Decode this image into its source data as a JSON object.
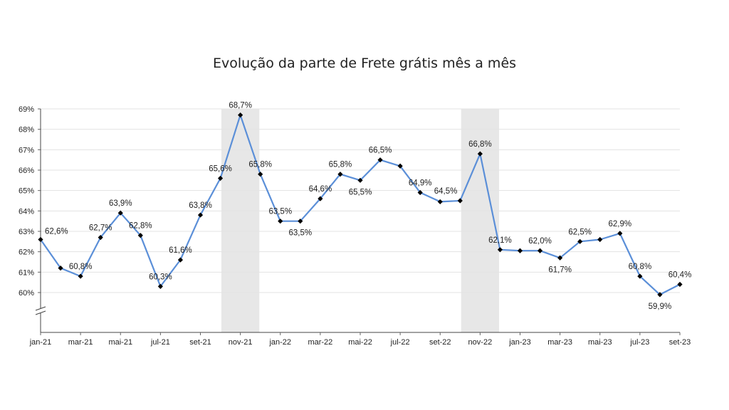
{
  "chart_data": {
    "type": "line",
    "title": "Evolução da parte de Frete grátis mês a mês",
    "y_axis": {
      "min": 60,
      "max": 69,
      "ticks": [
        {
          "value": 60,
          "label": "60%"
        },
        {
          "value": 61,
          "label": "61%"
        },
        {
          "value": 62,
          "label": "62%"
        },
        {
          "value": 63,
          "label": "63%"
        },
        {
          "value": 64,
          "label": "64%"
        },
        {
          "value": 65,
          "label": "65%"
        },
        {
          "value": 66,
          "label": "66%"
        },
        {
          "value": 67,
          "label": "67%"
        },
        {
          "value": 68,
          "label": "68%"
        },
        {
          "value": 69,
          "label": "69%"
        }
      ],
      "axis_break": true
    },
    "x_tick_labels": [
      "jan-21",
      "mar-21",
      "mai-21",
      "jul-21",
      "set-21",
      "nov-21",
      "jan-22",
      "mar-22",
      "mai-22",
      "jul-22",
      "set-22",
      "nov-22",
      "jan-23",
      "mar-23",
      "mai-23",
      "jul-23",
      "set-23"
    ],
    "months": [
      "jan-21",
      "fev-21",
      "mar-21",
      "abr-21",
      "mai-21",
      "jun-21",
      "jul-21",
      "ago-21",
      "set-21",
      "out-21",
      "nov-21",
      "dez-21",
      "jan-22",
      "fev-22",
      "mar-22",
      "abr-22",
      "mai-22",
      "jun-22",
      "jul-22",
      "ago-22",
      "set-22",
      "out-22",
      "nov-22",
      "dez-22",
      "jan-23",
      "fev-23",
      "mar-23",
      "abr-23",
      "mai-23",
      "jun-23",
      "jul-23",
      "ago-23",
      "set-23"
    ],
    "series": [
      {
        "values": [
          62.6,
          61.2,
          60.8,
          62.7,
          63.9,
          62.8,
          60.3,
          61.6,
          63.8,
          65.6,
          68.7,
          65.8,
          63.5,
          63.5,
          64.6,
          65.8,
          65.5,
          66.5,
          66.2,
          64.9,
          64.45,
          64.5,
          66.8,
          62.1,
          62.05,
          62.05,
          61.7,
          62.5,
          62.6,
          62.9,
          60.8,
          59.9,
          60.4
        ],
        "color": "#5b8fd8"
      }
    ],
    "data_labels": [
      {
        "i": 0,
        "text": "62,6%",
        "pos": "above-right"
      },
      {
        "i": 2,
        "text": "60,8%",
        "pos": "above"
      },
      {
        "i": 3,
        "text": "62,7%",
        "pos": "above"
      },
      {
        "i": 4,
        "text": "63,9%",
        "pos": "above"
      },
      {
        "i": 5,
        "text": "62,8%",
        "pos": "above"
      },
      {
        "i": 6,
        "text": "60,3%",
        "pos": "above"
      },
      {
        "i": 7,
        "text": "61,6%",
        "pos": "above"
      },
      {
        "i": 8,
        "text": "63,8%",
        "pos": "above"
      },
      {
        "i": 9,
        "text": "65,6%",
        "pos": "above"
      },
      {
        "i": 10,
        "text": "68,7%",
        "pos": "above"
      },
      {
        "i": 11,
        "text": "65,8%",
        "pos": "above"
      },
      {
        "i": 12,
        "text": "63,5%",
        "pos": "above"
      },
      {
        "i": 13,
        "text": "63,5%",
        "pos": "below"
      },
      {
        "i": 14,
        "text": "64,6%",
        "pos": "above"
      },
      {
        "i": 15,
        "text": "65,8%",
        "pos": "above"
      },
      {
        "i": 16,
        "text": "65,5%",
        "pos": "below"
      },
      {
        "i": 17,
        "text": "66,5%",
        "pos": "above"
      },
      {
        "i": 19,
        "text": "64,9%",
        "pos": "above"
      },
      {
        "i": 21,
        "text": "64,5%",
        "pos": "above-left"
      },
      {
        "i": 22,
        "text": "66,8%",
        "pos": "above"
      },
      {
        "i": 23,
        "text": "62,1%",
        "pos": "above"
      },
      {
        "i": 25,
        "text": "62,0%",
        "pos": "above"
      },
      {
        "i": 26,
        "text": "61,7%",
        "pos": "below"
      },
      {
        "i": 27,
        "text": "62,5%",
        "pos": "above"
      },
      {
        "i": 29,
        "text": "62,9%",
        "pos": "above"
      },
      {
        "i": 30,
        "text": "60,8%",
        "pos": "above"
      },
      {
        "i": 31,
        "text": "59,9%",
        "pos": "below"
      },
      {
        "i": 32,
        "text": "60,4%",
        "pos": "above"
      }
    ],
    "highlight_bands": [
      {
        "from": "nov-21",
        "color": "#e7e7e7"
      },
      {
        "from": "nov-22",
        "color": "#e7e7e7"
      }
    ],
    "grid": true,
    "legend": false
  }
}
